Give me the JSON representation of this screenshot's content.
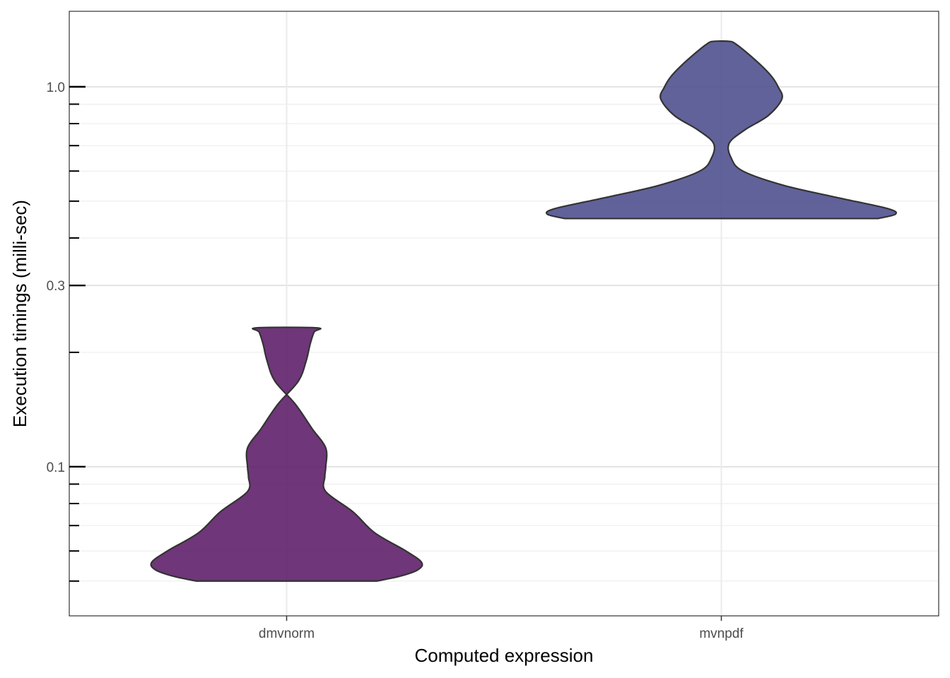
{
  "chart_data": {
    "type": "violin",
    "xlabel": "Computed expression",
    "ylabel": "Execution timings (milli-sec)",
    "y_scale": "log10",
    "ylim": [
      0.0405,
      1.58
    ],
    "y_ticks": [
      {
        "value": 0.1,
        "label": "0.1"
      },
      {
        "value": 0.3,
        "label": "0.3"
      },
      {
        "value": 1.0,
        "label": "1.0"
      }
    ],
    "y_minor_ticks": [
      0.04,
      0.05,
      0.06,
      0.07,
      0.08,
      0.09,
      0.2,
      0.4,
      0.5,
      0.6,
      0.7,
      0.8,
      0.9
    ],
    "grid": true,
    "categories": [
      "dmvnorm",
      "mvnpdf"
    ],
    "series": [
      {
        "category": "dmvnorm",
        "color": "#5b1a66",
        "density": [
          {
            "y": 0.05,
            "w": 0.46
          },
          {
            "y": 0.0515,
            "w": 0.58
          },
          {
            "y": 0.0535,
            "w": 0.67
          },
          {
            "y": 0.056,
            "w": 0.69
          },
          {
            "y": 0.06,
            "w": 0.61
          },
          {
            "y": 0.067,
            "w": 0.45
          },
          {
            "y": 0.076,
            "w": 0.34
          },
          {
            "y": 0.086,
            "w": 0.2
          },
          {
            "y": 0.094,
            "w": 0.195
          },
          {
            "y": 0.1,
            "w": 0.2
          },
          {
            "y": 0.112,
            "w": 0.2
          },
          {
            "y": 0.126,
            "w": 0.13
          },
          {
            "y": 0.146,
            "w": 0.045
          },
          {
            "y": 0.168,
            "w": -0.06
          },
          {
            "y": 0.19,
            "w": -0.1
          },
          {
            "y": 0.21,
            "w": -0.12
          },
          {
            "y": 0.226,
            "w": -0.14
          },
          {
            "y": 0.232,
            "w": -0.155
          }
        ]
      },
      {
        "category": "mvnpdf",
        "color": "#4b4c8c",
        "density": [
          {
            "y": 0.45,
            "w": 0.8
          },
          {
            "y": 0.462,
            "w": 0.89
          },
          {
            "y": 0.478,
            "w": 0.85
          },
          {
            "y": 0.51,
            "w": 0.6
          },
          {
            "y": 0.55,
            "w": 0.32
          },
          {
            "y": 0.6,
            "w": 0.11
          },
          {
            "y": 0.65,
            "w": 0.05
          },
          {
            "y": 0.71,
            "w": 0.04
          },
          {
            "y": 0.77,
            "w": 0.12
          },
          {
            "y": 0.84,
            "w": 0.24
          },
          {
            "y": 0.93,
            "w": 0.31
          },
          {
            "y": 1.0,
            "w": 0.29
          },
          {
            "y": 1.06,
            "w": 0.26
          },
          {
            "y": 1.13,
            "w": 0.21
          },
          {
            "y": 1.23,
            "w": 0.13
          },
          {
            "y": 1.3,
            "w": 0.07
          },
          {
            "y": 1.317,
            "w": 0.04
          }
        ]
      }
    ]
  }
}
